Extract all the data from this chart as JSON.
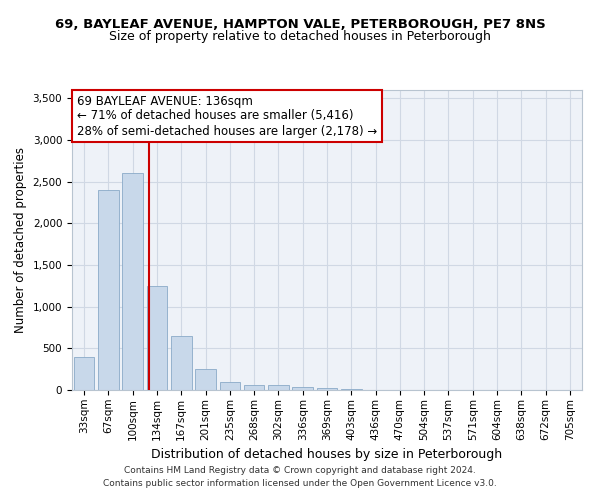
{
  "title_line1": "69, BAYLEAF AVENUE, HAMPTON VALE, PETERBOROUGH, PE7 8NS",
  "title_line2": "Size of property relative to detached houses in Peterborough",
  "xlabel": "Distribution of detached houses by size in Peterborough",
  "ylabel": "Number of detached properties",
  "bar_color": "#c8d8ea",
  "bar_edge_color": "#8aaac8",
  "categories": [
    "33sqm",
    "67sqm",
    "100sqm",
    "134sqm",
    "167sqm",
    "201sqm",
    "235sqm",
    "268sqm",
    "302sqm",
    "336sqm",
    "369sqm",
    "403sqm",
    "436sqm",
    "470sqm",
    "504sqm",
    "537sqm",
    "571sqm",
    "604sqm",
    "638sqm",
    "672sqm",
    "705sqm"
  ],
  "values": [
    400,
    2400,
    2600,
    1250,
    650,
    250,
    100,
    60,
    55,
    40,
    20,
    10,
    5,
    3,
    2,
    1,
    1,
    0,
    0,
    0,
    0
  ],
  "ylim": [
    0,
    3600
  ],
  "yticks": [
    0,
    500,
    1000,
    1500,
    2000,
    2500,
    3000,
    3500
  ],
  "red_line_index": 3,
  "annotation_line1": "69 BAYLEAF AVENUE: 136sqm",
  "annotation_line2": "← 71% of detached houses are smaller (5,416)",
  "annotation_line3": "28% of semi-detached houses are larger (2,178) →",
  "annotation_box_color": "#ffffff",
  "annotation_box_edge": "#cc0000",
  "red_line_color": "#cc0000",
  "grid_color": "#d0d8e4",
  "bg_color": "#eef2f8",
  "footer_line1": "Contains HM Land Registry data © Crown copyright and database right 2024.",
  "footer_line2": "Contains public sector information licensed under the Open Government Licence v3.0.",
  "title_fontsize": 9.5,
  "subtitle_fontsize": 9,
  "xlabel_fontsize": 9,
  "ylabel_fontsize": 8.5,
  "tick_fontsize": 7.5,
  "annotation_fontsize": 8.5,
  "footer_fontsize": 6.5
}
